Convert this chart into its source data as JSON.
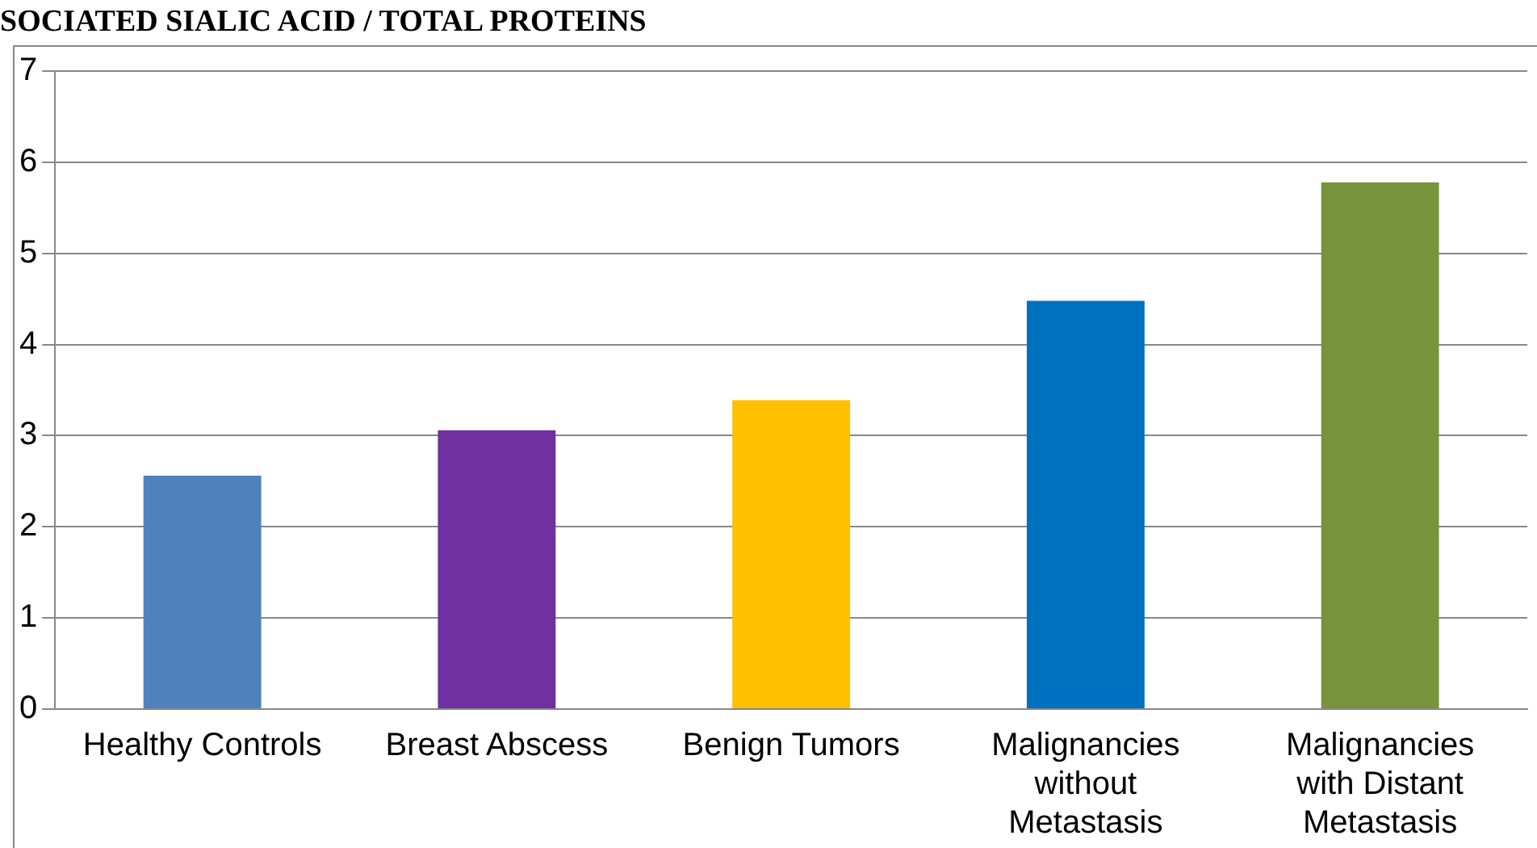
{
  "chart_data": {
    "type": "bar",
    "title": "SOCIATED SIALIC ACID / TOTAL PROTEINS",
    "categories": [
      "Healthy Controls",
      "Breast Abscess",
      "Benign Tumors",
      "Malignancies without Metastasis",
      "Malignancies with Distant Metastasis"
    ],
    "values": [
      2.56,
      3.06,
      3.39,
      4.48,
      5.78
    ],
    "colors": [
      "#4f81bd",
      "#7030a0",
      "#ffc000",
      "#0070c0",
      "#77933c"
    ],
    "ylim": [
      0,
      7
    ],
    "yticks": [
      0,
      1,
      2,
      3,
      4,
      5,
      6,
      7
    ],
    "grid": "y"
  }
}
